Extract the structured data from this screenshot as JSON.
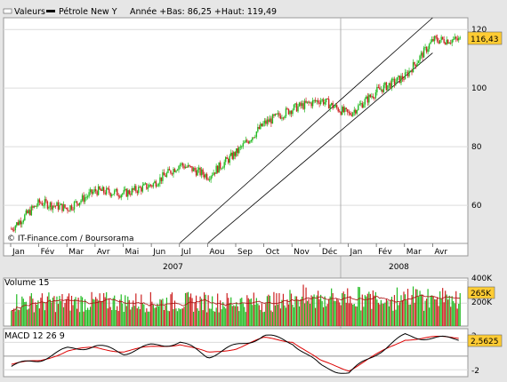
{
  "header": {
    "values_label": "Valeurs",
    "series_name": "Pétrole New Y",
    "stats": "Année +Bas: 86,25 +Haut: 119,49"
  },
  "price_chart": {
    "watermark": "© IT-Finance.com / Boursorama",
    "last_value_badge": "116,43",
    "y_ticks": [
      "60",
      "80",
      "100",
      "120"
    ],
    "x_month_labels": [
      "Jan",
      "Fév",
      "Mar",
      "Avr",
      "Mai",
      "Jun",
      "Jul",
      "Aou",
      "Sep",
      "Oct",
      "Nov",
      "Déc",
      "Jan",
      "Fév",
      "Mar",
      "Avr"
    ],
    "year_labels": [
      "2007",
      "2008"
    ]
  },
  "volume_panel": {
    "title": "Volume 15",
    "y_ticks": [
      "400K",
      "200K"
    ],
    "last_value_badge": "265K"
  },
  "macd_panel": {
    "title": "MACD 12 26 9",
    "y_ticks": [
      "2",
      "-2"
    ],
    "last_value_badge": "2,5625"
  },
  "colors": {
    "background": "#e6e6e6",
    "plot_bg": "#ffffff",
    "up_candle": "#22bb22",
    "down_candle": "#cc2222",
    "macd_line": "#000000",
    "signal_line": "#dd0000",
    "badge_fill": "#ffcc33"
  },
  "chart_data": [
    {
      "type": "candlestick",
      "name": "Pétrole New Y",
      "x_unit": "month",
      "x": [
        "2007-01",
        "2007-02",
        "2007-03",
        "2007-04",
        "2007-05",
        "2007-06",
        "2007-07",
        "2007-08",
        "2007-09",
        "2007-10",
        "2007-11",
        "2007-12",
        "2008-01",
        "2008-02",
        "2008-03",
        "2008-04"
      ],
      "close_approx": [
        58,
        61,
        59,
        65,
        64,
        67,
        74,
        70,
        78,
        88,
        93,
        96,
        91,
        99,
        104,
        116.43
      ],
      "ylim": [
        47,
        124
      ],
      "channel_lines": [
        {
          "from": [
            "2007-07",
            47
          ],
          "to": [
            "2008-04",
            124
          ]
        },
        {
          "from": [
            "2007-08",
            47
          ],
          "to": [
            "2008-04",
            112
          ]
        }
      ],
      "grid": true
    },
    {
      "type": "bar",
      "name": "Volume 15",
      "ylim": [
        0,
        420000
      ],
      "moving_average": true
    },
    {
      "type": "line",
      "name": "MACD 12 26 9",
      "series": [
        {
          "values": [
            -1.5,
            -0.5,
            1.0,
            1.5,
            0.5,
            1.5,
            2.0,
            0.0,
            1.5,
            3.0,
            2.0,
            -1.5,
            -2.5,
            0.5,
            3.0,
            2.5625
          ]
        },
        {
          "values": [
            -1.2,
            -0.7,
            0.8,
            1.2,
            0.7,
            1.3,
            1.8,
            0.4,
            1.2,
            2.6,
            2.2,
            -0.8,
            -2.0,
            0.2,
            2.5,
            2.7
          ]
        }
      ],
      "ylim": [
        -3,
        4
      ]
    }
  ]
}
